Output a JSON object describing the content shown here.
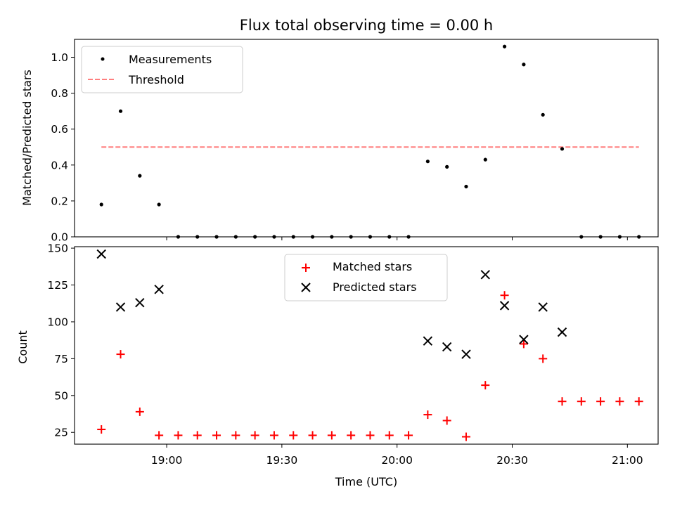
{
  "chart_data": [
    {
      "type": "scatter",
      "title": "Flux total observing time = 0.00 h",
      "ylabel": "Matched/Predicted stars",
      "xlabel": "",
      "ylim": [
        0,
        1.1
      ],
      "yticks": [
        "0.0",
        "0.2",
        "0.4",
        "0.6",
        "0.8",
        "1.0"
      ],
      "grid": false,
      "legend_position": "upper-left",
      "series": [
        {
          "name": "Measurements",
          "marker": "dot",
          "color": "#000000",
          "x": [
            "18:43",
            "18:48",
            "18:53",
            "18:58",
            "19:03",
            "19:08",
            "19:13",
            "19:18",
            "19:23",
            "19:28",
            "19:33",
            "19:38",
            "19:43",
            "19:48",
            "19:53",
            "19:58",
            "20:03",
            "20:08",
            "20:13",
            "20:18",
            "20:23",
            "20:28",
            "20:33",
            "20:38",
            "20:43",
            "20:48",
            "20:53",
            "20:58",
            "21:03"
          ],
          "y": [
            0.18,
            0.7,
            0.34,
            0.18,
            0,
            0,
            0,
            0,
            0,
            0,
            0,
            0,
            0,
            0,
            0,
            0,
            0,
            0.42,
            0.39,
            0.28,
            0.43,
            1.06,
            0.96,
            0.68,
            0.49,
            0,
            0,
            0,
            0
          ]
        },
        {
          "name": "Threshold",
          "style": "dashed",
          "color": "#ff7f7f",
          "x": [
            "18:43",
            "21:03"
          ],
          "y": [
            0.5,
            0.5
          ]
        }
      ]
    },
    {
      "type": "scatter",
      "title": "",
      "xlabel": "Time (UTC)",
      "ylabel": "Count",
      "ylim": [
        17,
        151
      ],
      "yticks": [
        "25",
        "50",
        "75",
        "100",
        "125",
        "150"
      ],
      "xticks": [
        "19:00",
        "19:30",
        "20:00",
        "20:30",
        "21:00"
      ],
      "grid": false,
      "legend_position": "upper-center",
      "series": [
        {
          "name": "Matched stars",
          "marker": "plus",
          "color": "#ff0000",
          "x": [
            "18:43",
            "18:48",
            "18:53",
            "18:58",
            "19:03",
            "19:08",
            "19:13",
            "19:18",
            "19:23",
            "19:28",
            "19:33",
            "19:38",
            "19:43",
            "19:48",
            "19:53",
            "19:58",
            "20:03",
            "20:08",
            "20:13",
            "20:18",
            "20:23",
            "20:28",
            "20:33",
            "20:38",
            "20:43",
            "20:48",
            "20:53",
            "20:58",
            "21:03"
          ],
          "y": [
            27,
            78,
            39,
            23,
            23,
            23,
            23,
            23,
            23,
            23,
            23,
            23,
            23,
            23,
            23,
            23,
            23,
            37,
            33,
            22,
            57,
            118,
            85,
            75,
            46,
            46,
            46,
            46,
            46
          ]
        },
        {
          "name": "Predicted stars",
          "marker": "x",
          "color": "#000000",
          "x": [
            "18:43",
            "18:48",
            "18:53",
            "18:58",
            "20:08",
            "20:13",
            "20:18",
            "20:23",
            "20:28",
            "20:33",
            "20:38",
            "20:43"
          ],
          "y": [
            146,
            110,
            113,
            122,
            87,
            83,
            78,
            132,
            111,
            88,
            110,
            93
          ]
        }
      ]
    }
  ]
}
